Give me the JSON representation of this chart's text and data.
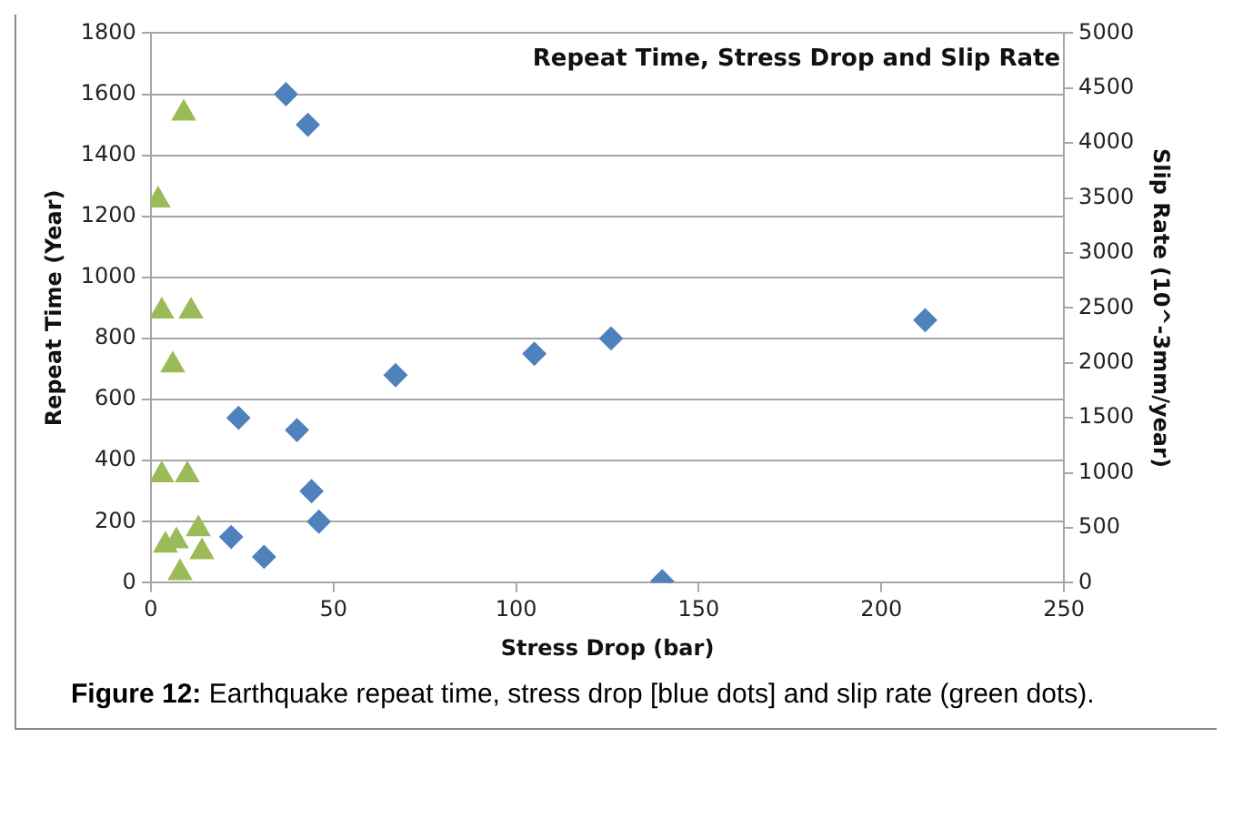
{
  "chart_data": {
    "type": "scatter",
    "title": "Repeat Time, Stress Drop and Slip Rate",
    "xlabel": "Stress Drop (bar)",
    "ylabel": "Repeat Time (Year)",
    "y2label": "Slip Rate (10^-3mm/year)",
    "annotations": [
      "Figure 12: Earthquake repeat time, stress drop [blue dots] and slip rate (green dots)."
    ],
    "series": [
      {
        "color": "#4f81bd",
        "marker": "diamond",
        "x": [
          37,
          43,
          24,
          40,
          44,
          46,
          22,
          31,
          67,
          105,
          126,
          212,
          140
        ],
        "values": [
          1600,
          1500,
          540,
          500,
          300,
          200,
          150,
          85,
          680,
          750,
          800,
          860,
          5
        ]
      },
      {
        "color": "#9bbb59",
        "marker": "triangle",
        "axis": "y2",
        "x": [
          9,
          2,
          3,
          11,
          6,
          3,
          10,
          4,
          7,
          13,
          14,
          8
        ],
        "values": [
          4270,
          3480,
          2470,
          2470,
          1980,
          980,
          980,
          340,
          380,
          490,
          280,
          90
        ]
      }
    ],
    "xlim": [
      0,
      250
    ],
    "xticks": [
      0,
      50,
      100,
      150,
      200,
      250
    ],
    "ylim": [
      0,
      1800
    ],
    "yticks": [
      0,
      200,
      400,
      600,
      800,
      1000,
      1200,
      1400,
      1600,
      1800
    ],
    "y2lim": [
      0,
      5000
    ],
    "y2ticks": [
      0,
      500,
      1000,
      1500,
      2000,
      2500,
      3000,
      3500,
      4000,
      4500,
      5000
    ],
    "grid": "y",
    "legend": false
  }
}
